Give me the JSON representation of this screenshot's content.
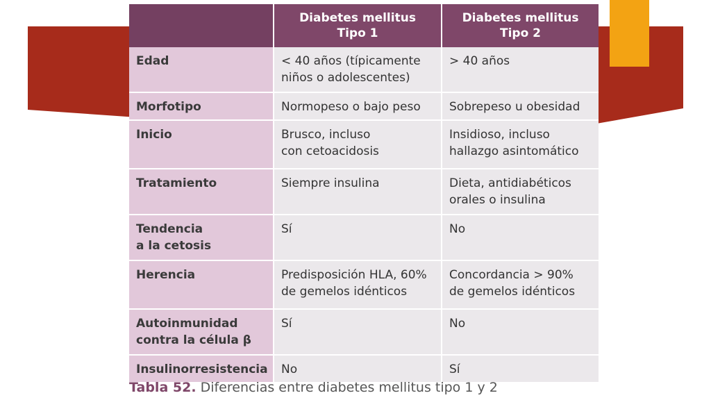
{
  "table": {
    "headers": [
      "",
      "Diabetes mellitus\nTipo 1",
      "Diabetes mellitus\nTipo 2"
    ],
    "rows": [
      {
        "label": [
          "Edad"
        ],
        "t1": [
          "< 40 años (típicamente",
          "niños o adolescentes)"
        ],
        "t2": [
          "> 40 años"
        ]
      },
      {
        "label": [
          "Morfotipo"
        ],
        "t1": [
          "Normopeso o bajo peso"
        ],
        "t2": [
          "Sobrepeso u obesidad"
        ]
      },
      {
        "label": [
          "Inicio"
        ],
        "t1": [
          "Brusco, incluso",
          "con cetoacidosis"
        ],
        "t2": [
          "Insidioso, incluso",
          "hallazgo asintomático"
        ]
      },
      {
        "label": [
          "Tratamiento"
        ],
        "t1": [
          "Siempre insulina"
        ],
        "t2": [
          "Dieta, antidiabéticos",
          "orales o insulina"
        ]
      },
      {
        "label": [
          "Tendencia",
          "a la cetosis"
        ],
        "t1": [
          "Sí"
        ],
        "t2": [
          "No"
        ]
      },
      {
        "label": [
          "Herencia"
        ],
        "t1": [
          "Predisposición HLA, 60%",
          "de gemelos idénticos"
        ],
        "t2": [
          "Concordancia > 90%",
          "de gemelos idénticos"
        ]
      },
      {
        "label": [
          "Autoinmunidad",
          "contra la célula β"
        ],
        "t1": [
          "Sí"
        ],
        "t2": [
          "No"
        ]
      },
      {
        "label": [
          "Insulinorresistencia"
        ],
        "t1": [
          "No"
        ],
        "t2": [
          "Sí"
        ]
      }
    ]
  },
  "caption": {
    "number": "Tabla 52.",
    "text": " Diferencias entre diabetes mellitus tipo 1 y 2"
  },
  "colors": {
    "banner_red": "#a72b1b",
    "accent_orange": "#f3a313",
    "header_purple": "#7f4769",
    "label_pink": "#e2c8da",
    "cell_gray": "#ebe8eb"
  }
}
